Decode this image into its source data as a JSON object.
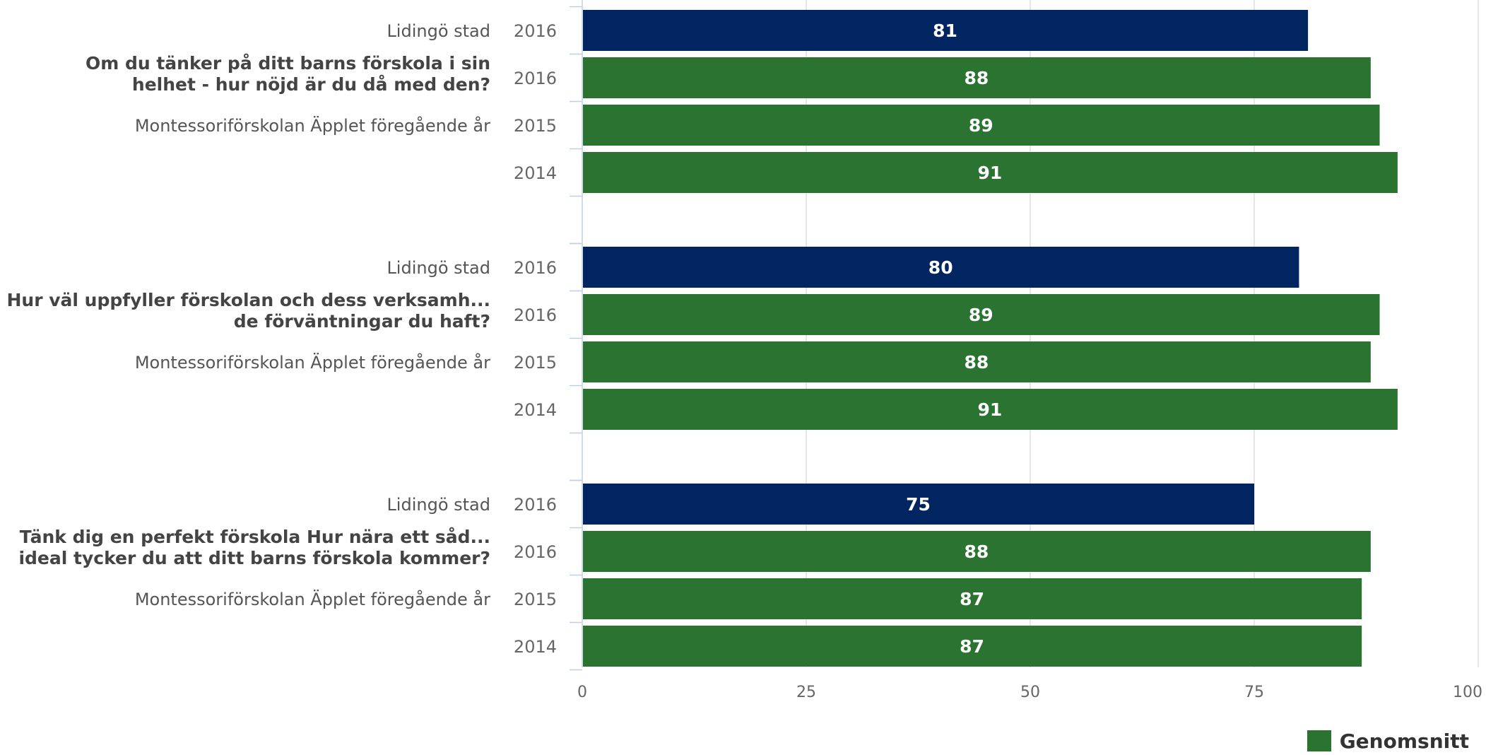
{
  "chart_data": {
    "type": "bar",
    "orientation": "horizontal",
    "grid": true,
    "xlim": [
      0,
      100
    ],
    "x_ticks": [
      "0",
      "25",
      "50",
      "75",
      "100"
    ],
    "legend_placement": "bottom-right",
    "groups": [
      {
        "question": "Om du tänker på ditt barns förskola i sin helhet - hur nöjd är du då med den?",
        "question_lines": [
          "Om du tänker på ditt barns förskola i sin",
          "helhet - hur nöjd är du då med den?"
        ],
        "bars": [
          {
            "label": "Lidingö stad",
            "year": "2016",
            "value": 81,
            "color": "#002560"
          },
          {
            "label": "",
            "year": "2016",
            "value": 88,
            "color": "#2a7331"
          },
          {
            "label": "Montessoriförskolan Äpplet föregående år",
            "year": "2015",
            "value": 89,
            "color": "#2a7331"
          },
          {
            "label": "",
            "year": "2014",
            "value": 91,
            "color": "#2a7331"
          }
        ]
      },
      {
        "question": "Hur väl uppfyller förskolan och dess verksamh... de förväntningar du haft?",
        "question_lines": [
          "Hur väl uppfyller förskolan och dess verksamh...",
          "de förväntningar du haft?"
        ],
        "bars": [
          {
            "label": "Lidingö stad",
            "year": "2016",
            "value": 80,
            "color": "#002560"
          },
          {
            "label": "",
            "year": "2016",
            "value": 89,
            "color": "#2a7331"
          },
          {
            "label": "Montessoriförskolan Äpplet föregående år",
            "year": "2015",
            "value": 88,
            "color": "#2a7331"
          },
          {
            "label": "",
            "year": "2014",
            "value": 91,
            "color": "#2a7331"
          }
        ]
      },
      {
        "question": "Tänk dig en perfekt förskola Hur nära ett såd... ideal tycker du att ditt barns förskola kommer?",
        "question_lines": [
          "Tänk dig en perfekt förskola Hur nära ett såd...",
          "ideal tycker du att ditt barns förskola kommer?"
        ],
        "bars": [
          {
            "label": "Lidingö stad",
            "year": "2016",
            "value": 75,
            "color": "#002560"
          },
          {
            "label": "",
            "year": "2016",
            "value": 88,
            "color": "#2a7331"
          },
          {
            "label": "Montessoriförskolan Äpplet föregående år",
            "year": "2015",
            "value": 87,
            "color": "#2a7331"
          },
          {
            "label": "",
            "year": "2014",
            "value": 87,
            "color": "#2a7331"
          }
        ]
      }
    ],
    "series": [
      {
        "name": "Genomsnitt",
        "color": "#2a7331"
      }
    ]
  },
  "legend": {
    "label": "Genomsnitt",
    "color": "#2a7331"
  },
  "colors": {
    "lidingo": "#002560",
    "genomsnitt": "#2a7331",
    "grid": "#dddddd",
    "axis_text": "#666666",
    "label_text": "#555555",
    "question_text": "#444444"
  }
}
